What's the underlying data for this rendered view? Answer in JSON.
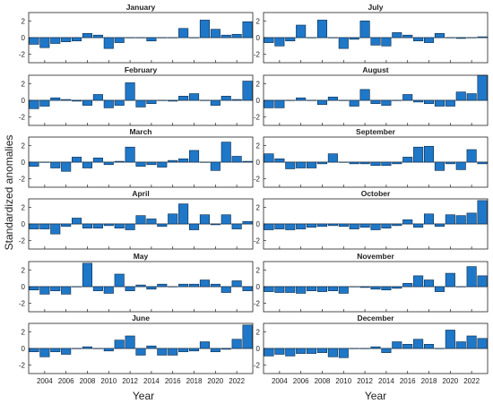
{
  "figure": {
    "ylabel": "Standardized anomalies",
    "xlabel_left": "Year",
    "xlabel_right": "Year",
    "bar_color": "#1f77c8",
    "bar_edge": "#0b2b4a"
  },
  "chart_data": {
    "type": "bar",
    "years": [
      2003,
      2004,
      2005,
      2006,
      2007,
      2008,
      2009,
      2010,
      2011,
      2012,
      2013,
      2014,
      2015,
      2016,
      2017,
      2018,
      2019,
      2020,
      2021,
      2022,
      2023
    ],
    "x_ticks": [
      2004,
      2006,
      2008,
      2010,
      2012,
      2014,
      2016,
      2018,
      2020,
      2022
    ],
    "y_ticks": [
      -2,
      0,
      2
    ],
    "ylim": [
      -3,
      3
    ],
    "panels": [
      {
        "title": "January",
        "values": [
          -0.8,
          -1.2,
          -0.7,
          -0.5,
          -0.4,
          0.5,
          0.3,
          -1.3,
          -0.6,
          0.0,
          0.0,
          -0.4,
          0.0,
          0.0,
          1.1,
          0.0,
          2.1,
          1.0,
          0.3,
          0.4,
          1.9
        ]
      },
      {
        "title": "July",
        "values": [
          -0.6,
          -1.0,
          -0.4,
          1.5,
          0.0,
          2.1,
          0.0,
          -1.3,
          -0.2,
          2.0,
          -0.9,
          -1.0,
          0.6,
          0.3,
          -0.4,
          -0.6,
          0.5,
          0.0,
          -0.1,
          0.0,
          0.1
        ]
      },
      {
        "title": "February",
        "values": [
          -1.0,
          -0.7,
          0.3,
          0.1,
          -0.1,
          -0.6,
          0.7,
          -0.9,
          -0.6,
          2.1,
          -0.8,
          -0.4,
          0.0,
          -0.1,
          0.5,
          0.8,
          0.0,
          -0.6,
          0.5,
          0.1,
          2.3
        ]
      },
      {
        "title": "August",
        "values": [
          -0.9,
          -0.9,
          0.0,
          0.3,
          0.0,
          -0.5,
          0.4,
          0.0,
          -0.7,
          1.3,
          -0.4,
          -0.6,
          0.0,
          0.7,
          -0.2,
          -0.4,
          -0.7,
          -0.7,
          1.0,
          0.8,
          3.0
        ]
      },
      {
        "title": "March",
        "values": [
          -0.5,
          0.0,
          -0.7,
          -1.1,
          0.6,
          -0.7,
          0.5,
          -0.3,
          0.1,
          1.8,
          -0.5,
          -0.3,
          -0.6,
          0.2,
          0.4,
          1.4,
          0.0,
          -1.0,
          2.4,
          0.7,
          0.1
        ]
      },
      {
        "title": "September",
        "values": [
          1.0,
          0.4,
          -0.8,
          -0.7,
          -0.7,
          -0.2,
          1.0,
          0.0,
          -0.2,
          -0.2,
          -0.4,
          -0.4,
          -0.2,
          0.6,
          1.8,
          1.9,
          -1.0,
          -0.2,
          -0.9,
          1.5,
          -0.2
        ]
      },
      {
        "title": "April",
        "values": [
          -0.6,
          -0.6,
          -1.2,
          -0.3,
          0.7,
          -0.5,
          -0.5,
          -0.2,
          -0.5,
          -0.7,
          1.0,
          0.6,
          -0.3,
          1.2,
          2.4,
          -0.7,
          1.1,
          -0.1,
          1.1,
          -0.6,
          0.3
        ]
      },
      {
        "title": "October",
        "values": [
          -0.7,
          -0.6,
          -0.7,
          -0.6,
          -0.4,
          -0.3,
          -0.2,
          -0.3,
          -0.6,
          -0.4,
          -0.7,
          -0.5,
          -0.2,
          0.5,
          -0.4,
          1.2,
          -0.3,
          1.1,
          1.0,
          1.3,
          2.8
        ]
      },
      {
        "title": "May",
        "values": [
          -0.4,
          -0.9,
          -0.5,
          -0.9,
          0.0,
          2.8,
          -0.5,
          -0.8,
          1.5,
          -0.5,
          0.2,
          -0.3,
          0.3,
          0.0,
          0.3,
          0.3,
          0.8,
          0.3,
          -0.7,
          0.7,
          -0.5
        ]
      },
      {
        "title": "November",
        "values": [
          -0.6,
          -0.7,
          -0.7,
          -0.8,
          -0.5,
          -0.6,
          -0.5,
          -0.8,
          0.0,
          -0.1,
          -0.3,
          -0.4,
          -0.2,
          0.4,
          1.3,
          0.8,
          -0.6,
          1.6,
          0.0,
          2.4,
          1.3
        ]
      },
      {
        "title": "June",
        "values": [
          -0.4,
          -1.0,
          -0.4,
          -0.7,
          0.0,
          0.2,
          0.0,
          -0.3,
          1.0,
          1.5,
          -0.8,
          0.3,
          -0.8,
          -0.8,
          -0.4,
          -0.3,
          0.8,
          -0.4,
          -0.1,
          1.1,
          2.8
        ]
      },
      {
        "title": "December",
        "values": [
          -0.9,
          -0.7,
          -0.9,
          -0.6,
          -0.6,
          -0.5,
          -1.0,
          -1.1,
          0.0,
          0.0,
          0.2,
          -0.5,
          0.8,
          0.5,
          1.1,
          0.5,
          0.0,
          2.2,
          0.8,
          1.5,
          1.2
        ]
      }
    ]
  }
}
